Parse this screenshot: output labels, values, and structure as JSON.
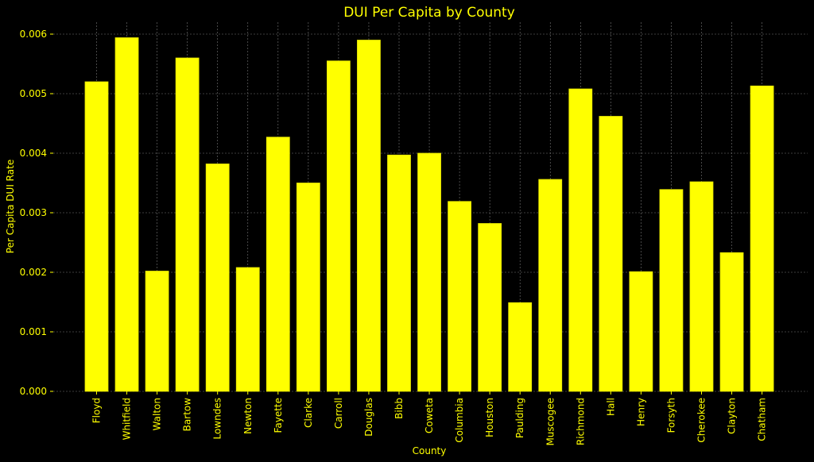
{
  "colors": {
    "background": "#000000",
    "bar_fill": "#ffff00",
    "bar_edge": "#e6e600",
    "text": "#ffff00",
    "grid": "#777777",
    "axis": "#333333"
  },
  "chart_data": {
    "type": "bar",
    "title": "DUI Per Capita by County",
    "xlabel": "County",
    "ylabel": "Per Capita DUI Rate",
    "ylim": [
      0,
      0.0062
    ],
    "yticks": [
      "0.000",
      "0.001",
      "0.002",
      "0.003",
      "0.004",
      "0.005",
      "0.006"
    ],
    "ytick_values": [
      0,
      0.001,
      0.002,
      0.003,
      0.004,
      0.005,
      0.006
    ],
    "grid": true,
    "categories": [
      "Floyd",
      "Whitfield",
      "Walton",
      "Bartow",
      "Lowndes",
      "Newton",
      "Fayette",
      "Clarke",
      "Carroll",
      "Douglas",
      "Bibb",
      "Coweta",
      "Columbia",
      "Houston",
      "Paulding",
      "Muscogee",
      "Richmond",
      "Hall",
      "Henry",
      "Forsyth",
      "Cherokee",
      "Clayton",
      "Chatham"
    ],
    "values": [
      0.0052,
      0.00594,
      0.00202,
      0.0056,
      0.00382,
      0.00208,
      0.00427,
      0.0035,
      0.00555,
      0.0059,
      0.00397,
      0.004,
      0.00319,
      0.00282,
      0.00149,
      0.00356,
      0.00508,
      0.00462,
      0.00201,
      0.00339,
      0.00352,
      0.00233,
      0.00513
    ]
  }
}
